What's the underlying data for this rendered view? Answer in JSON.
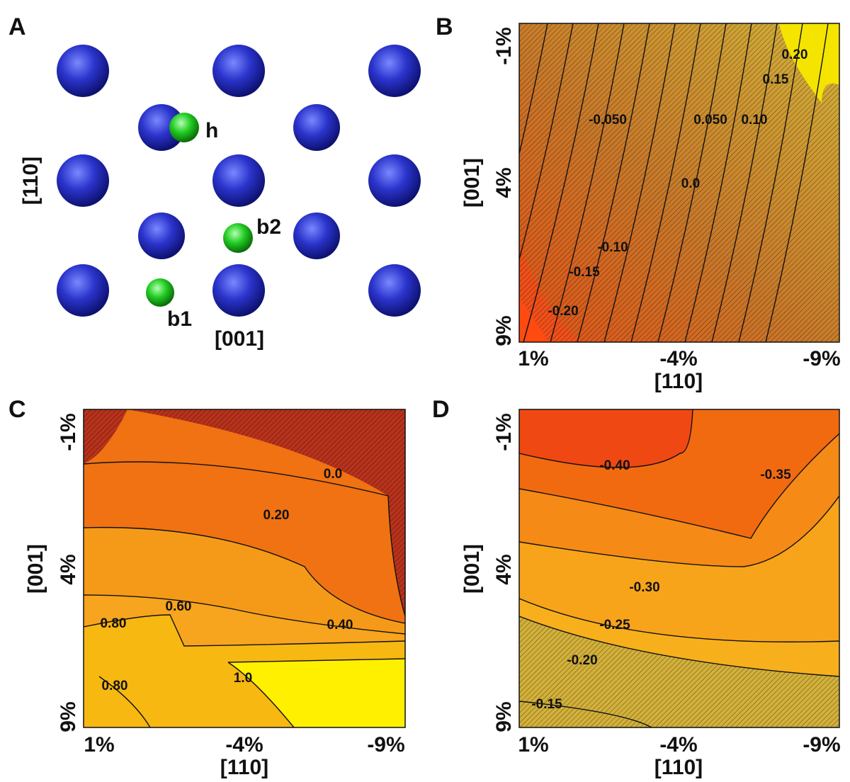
{
  "panel_a": {
    "letter": "A",
    "atom_labels": [
      "h",
      "b2",
      "b1"
    ],
    "axes": [
      "[110]",
      "[001]"
    ]
  },
  "panel_b": {
    "letter": "B",
    "xlabel": "[110]",
    "ylabel": "[001]",
    "xticks": [
      "1%",
      "-4%",
      "-9%"
    ],
    "yticks": [
      "-1%",
      "4%",
      "9%"
    ],
    "contour_labels": [
      "0.20",
      "0.15",
      "-0.050",
      "0.050",
      "0.10",
      "0.0",
      "-0.10",
      "-0.15",
      "-0.20"
    ]
  },
  "panel_c": {
    "letter": "C",
    "xlabel": "[110]",
    "ylabel": "[001]",
    "xticks": [
      "1%",
      "-4%",
      "-9%"
    ],
    "yticks": [
      "-1%",
      "4%",
      "9%"
    ],
    "contour_labels": [
      "0.0",
      "0.20",
      "0.60",
      "0.40",
      "0.80",
      "0.80",
      "1.0"
    ]
  },
  "panel_d": {
    "letter": "D",
    "xlabel": "[110]",
    "ylabel": "[001]",
    "xticks": [
      "1%",
      "-4%",
      "-9%"
    ],
    "yticks": [
      "-1%",
      "4%",
      "9%"
    ],
    "contour_labels": [
      "-0.40",
      "-0.35",
      "-0.30",
      "-0.25",
      "-0.20",
      "-0.15"
    ]
  }
}
